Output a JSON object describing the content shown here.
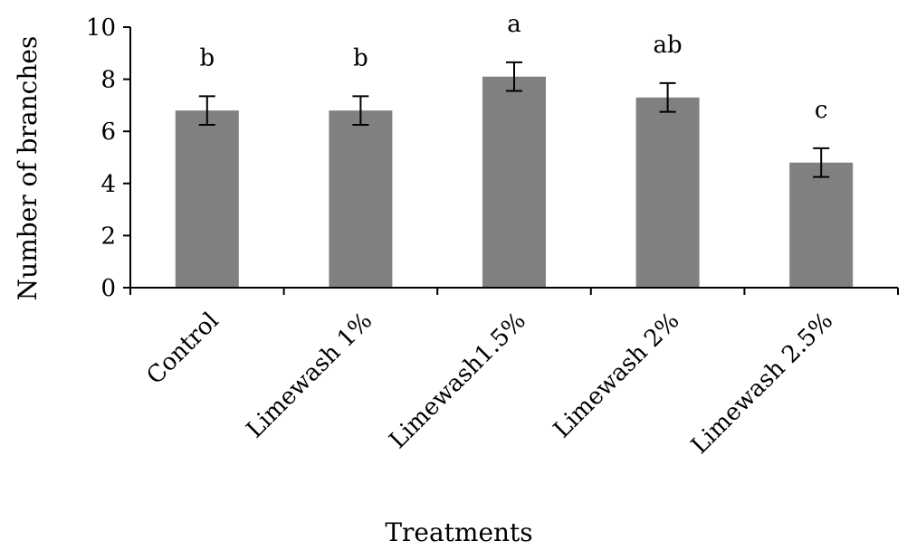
{
  "chart_data": {
    "type": "bar",
    "categories": [
      "Control",
      "Limewash 1%",
      "Limewash1.5%",
      "Limewash 2%",
      "Limewash 2.5%"
    ],
    "values": [
      6.8,
      6.8,
      8.1,
      7.3,
      4.8
    ],
    "error": [
      0.55,
      0.55,
      0.55,
      0.55,
      0.55
    ],
    "significance_letters": [
      "b",
      "b",
      "a",
      "ab",
      "c"
    ],
    "xlabel": "Treatments",
    "ylabel": "Number of branches",
    "ylim": [
      0,
      10
    ],
    "yticks": [
      0,
      2,
      4,
      6,
      8,
      10
    ],
    "grid": false,
    "bar_color": "#808080"
  }
}
